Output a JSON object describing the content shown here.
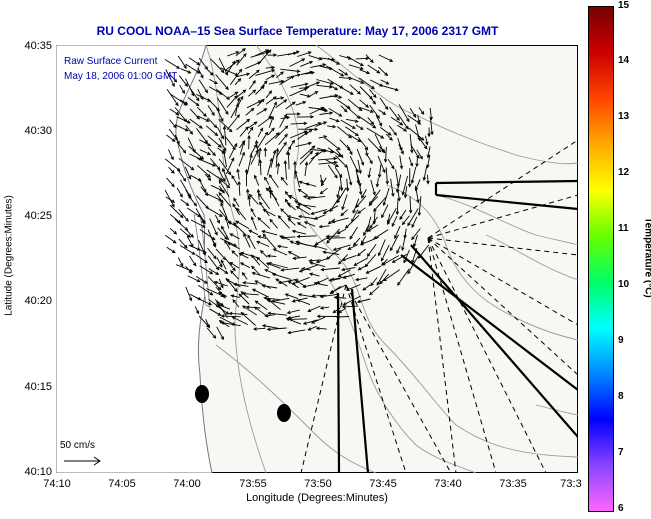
{
  "title": "RU COOL  NOAA–15  Sea Surface Temperature:  May 17, 2006 2317 GMT",
  "overlay": {
    "line1": "Raw Surface Current",
    "line2": "May 18, 2006 01:00 GMT"
  },
  "scale_label": "50 cm/s",
  "axes": {
    "xlabel": "Longitude (Degrees:Minutes)",
    "ylabel": "Latitude (Degrees:Minutes)",
    "x_ticks": [
      "74:10",
      "74:05",
      "74:00",
      "73:55",
      "73:50",
      "73:45",
      "73:40",
      "73:35",
      "73:3"
    ],
    "y_ticks": [
      "40:35",
      "40:30",
      "40:25",
      "40:20",
      "40:15",
      "40:10"
    ]
  },
  "colorbar": {
    "label": "Temperature (°C)",
    "ticks": [
      "15",
      "14",
      "13",
      "12",
      "11",
      "10",
      "9",
      "8",
      "7",
      "6"
    ],
    "range": [
      6,
      15
    ],
    "colors": [
      "#ff66ff",
      "#8844ff",
      "#0000ff",
      "#0088ff",
      "#00ffff",
      "#00ff66",
      "#66ff00",
      "#ffff00",
      "#ffaa00",
      "#ff4400",
      "#cc0000",
      "#770000"
    ]
  },
  "colors": {
    "title": "#0000b0",
    "land": "#ffffff",
    "water": "#f7f7f4",
    "contour": "#9a9a9a"
  }
}
